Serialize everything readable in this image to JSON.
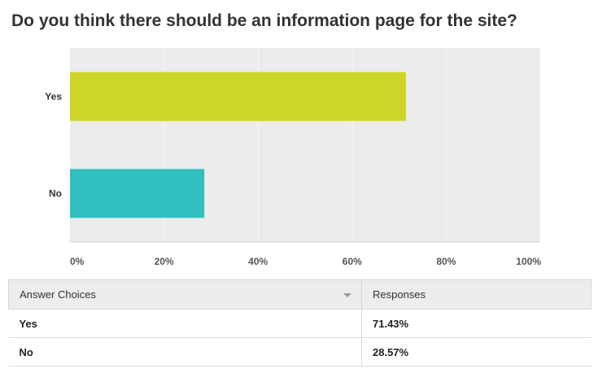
{
  "question": {
    "title": "Do you think there should be an information page for the site?"
  },
  "chart_data": {
    "type": "bar",
    "orientation": "horizontal",
    "categories": [
      "Yes",
      "No"
    ],
    "values": [
      71.43,
      28.57
    ],
    "colors": [
      "#cdd626",
      "#31bfbf"
    ],
    "xlim": [
      0,
      100
    ],
    "x_ticks": [
      "0%",
      "20%",
      "40%",
      "60%",
      "80%",
      "100%"
    ],
    "x_tick_values": [
      0,
      20,
      40,
      60,
      80,
      100
    ],
    "grid": true,
    "plot_background": "#ececec",
    "grid_color": "#f7f7f7"
  },
  "table": {
    "headers": {
      "answer": "Answer Choices",
      "responses": "Responses"
    },
    "rows": [
      {
        "answer": "Yes",
        "response": "71.43%"
      },
      {
        "answer": "No",
        "response": "28.57%"
      }
    ]
  }
}
